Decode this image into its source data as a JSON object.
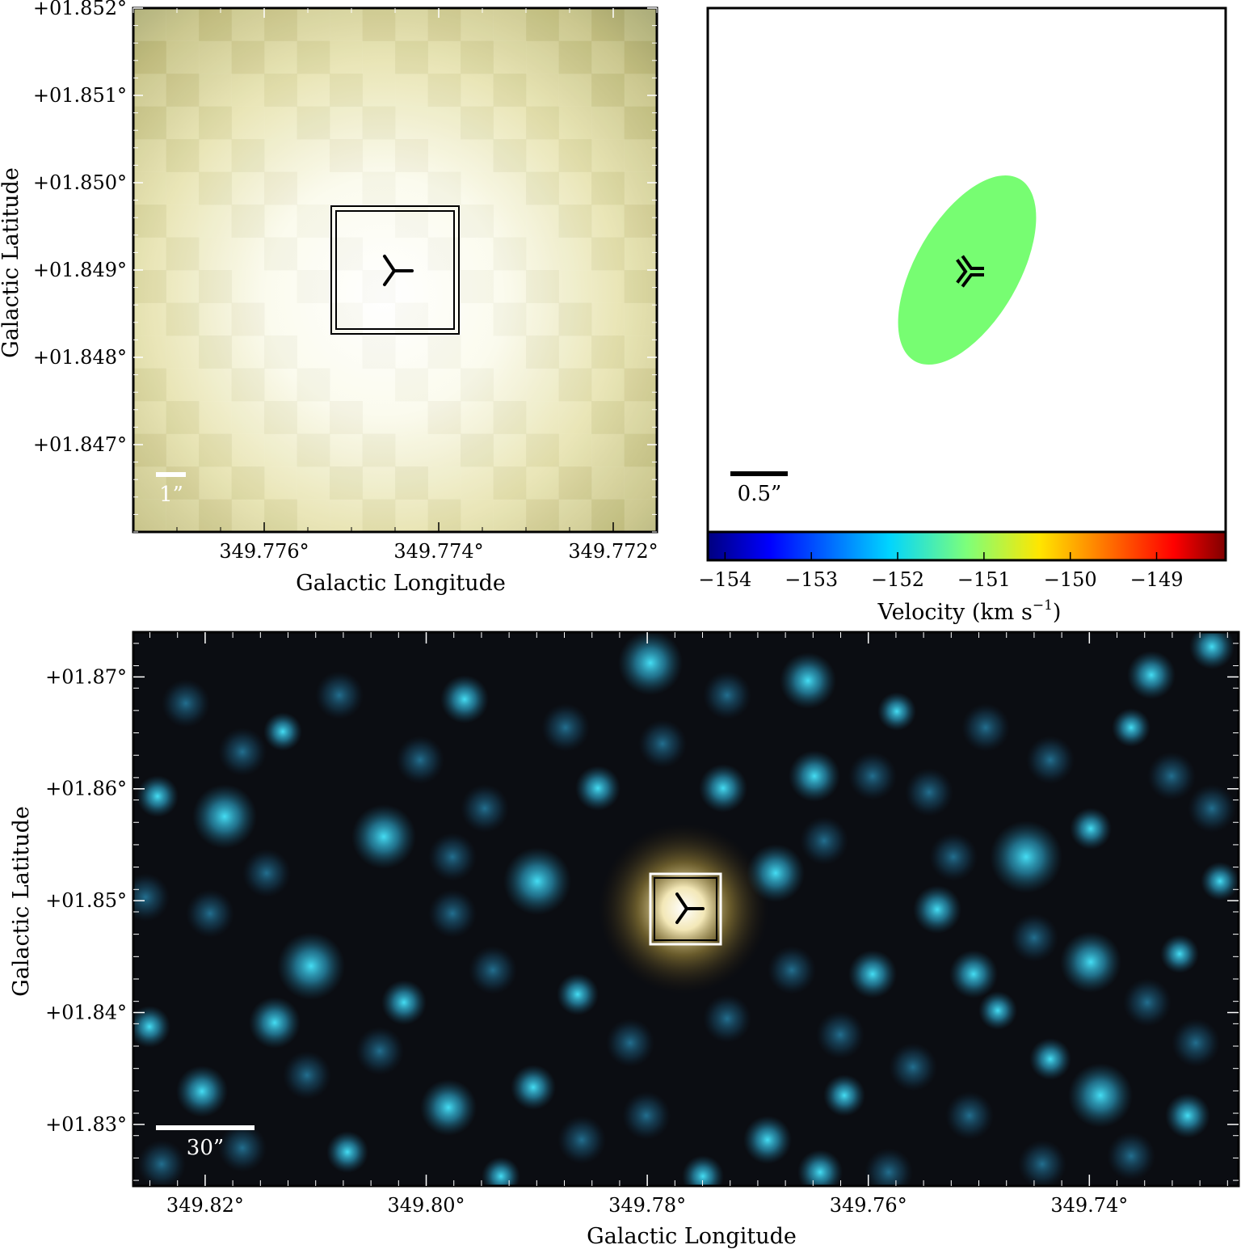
{
  "chart_data": [
    {
      "type": "heatmap",
      "panel": "top-left",
      "xlabel": "Galactic Longitude",
      "ylabel": "Galactic Latitude",
      "x_ticks": [
        349.776,
        349.774,
        349.772
      ],
      "x_tick_labels": [
        "349.776°",
        "349.774°",
        "349.772°"
      ],
      "y_ticks": [
        1.852,
        1.851,
        1.85,
        1.849,
        1.848,
        1.847
      ],
      "y_tick_labels": [
        "+01.852°",
        "+01.851°",
        "+01.850°",
        "+01.849°",
        "+01.848°",
        "+01.847°"
      ],
      "xlim": [
        349.7775,
        349.7715
      ],
      "ylim": [
        1.846,
        1.852
      ],
      "source": {
        "l": 349.7745,
        "b": 1.849,
        "marker": "tri-left"
      },
      "scale_bar_label": "1”",
      "colors": {
        "bright": "#ffffff",
        "edge": "#c5c07c",
        "corner": "#9c9a6a"
      }
    },
    {
      "type": "scatter",
      "panel": "top-right",
      "description_marker": "tri-left",
      "ellipse_color": "#77fd72",
      "scale_bar_label": "0.5”",
      "colorbar": {
        "label": "Velocity (km s",
        "label_sup": "−1",
        "label_end": ")",
        "range": [
          -154.2,
          -148.2
        ],
        "ticks": [
          -154,
          -153,
          -152,
          -151,
          -150,
          -149
        ],
        "tick_labels": [
          "−154",
          "−153",
          "−152",
          "−151",
          "−150",
          "−149"
        ],
        "colormap": "jet"
      }
    },
    {
      "type": "heatmap",
      "panel": "bottom",
      "xlabel": "Galactic Longitude",
      "ylabel": "Galactic Latitude",
      "x_ticks": [
        349.82,
        349.8,
        349.78,
        349.76,
        349.74
      ],
      "x_tick_labels": [
        "349.82°",
        "349.80°",
        "349.78°",
        "349.76°",
        "349.74°"
      ],
      "y_ticks": [
        1.87,
        1.86,
        1.85,
        1.84,
        1.83
      ],
      "y_tick_labels": [
        "+01.87°",
        "+01.86°",
        "+01.85°",
        "+01.84°",
        "+01.83°"
      ],
      "xlim": [
        349.8265,
        349.7265
      ],
      "ylim": [
        1.8245,
        1.874
      ],
      "source": {
        "l": 349.7745,
        "b": 1.849,
        "marker": "tri-left"
      },
      "scale_bar_label": "30”",
      "colors": {
        "background": "#0a0c10",
        "stars": "#3ee0ff",
        "source_glow": "#f5e8a0"
      }
    }
  ]
}
